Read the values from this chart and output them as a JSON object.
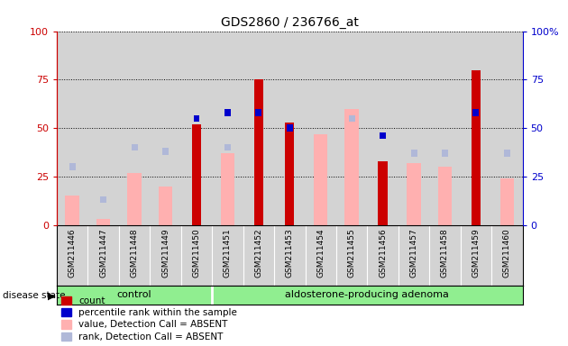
{
  "title": "GDS2860 / 236766_at",
  "samples": [
    "GSM211446",
    "GSM211447",
    "GSM211448",
    "GSM211449",
    "GSM211450",
    "GSM211451",
    "GSM211452",
    "GSM211453",
    "GSM211454",
    "GSM211455",
    "GSM211456",
    "GSM211457",
    "GSM211458",
    "GSM211459",
    "GSM211460"
  ],
  "control_count": 5,
  "count_values": [
    0,
    0,
    0,
    0,
    52,
    0,
    75,
    53,
    0,
    0,
    33,
    0,
    0,
    80,
    0
  ],
  "percentile_rank": [
    null,
    null,
    null,
    null,
    55,
    58,
    58,
    50,
    null,
    null,
    46,
    null,
    null,
    58,
    null
  ],
  "absent_value": [
    15,
    3,
    27,
    20,
    null,
    37,
    null,
    null,
    47,
    60,
    null,
    32,
    30,
    null,
    24
  ],
  "absent_rank": [
    30,
    13,
    40,
    38,
    null,
    40,
    null,
    null,
    null,
    55,
    null,
    37,
    37,
    null,
    37
  ],
  "ylim": [
    0,
    100
  ],
  "bar_color_count": "#cc0000",
  "bar_color_percentile": "#0000cc",
  "bar_color_absent_value": "#ffb0b0",
  "bar_color_absent_rank": "#b0b8d8",
  "bg_color": "#d3d3d3",
  "left_axis_color": "#cc0000",
  "right_axis_color": "#0000cc",
  "group_color": "#90ee90",
  "group_border": "#ffffff"
}
